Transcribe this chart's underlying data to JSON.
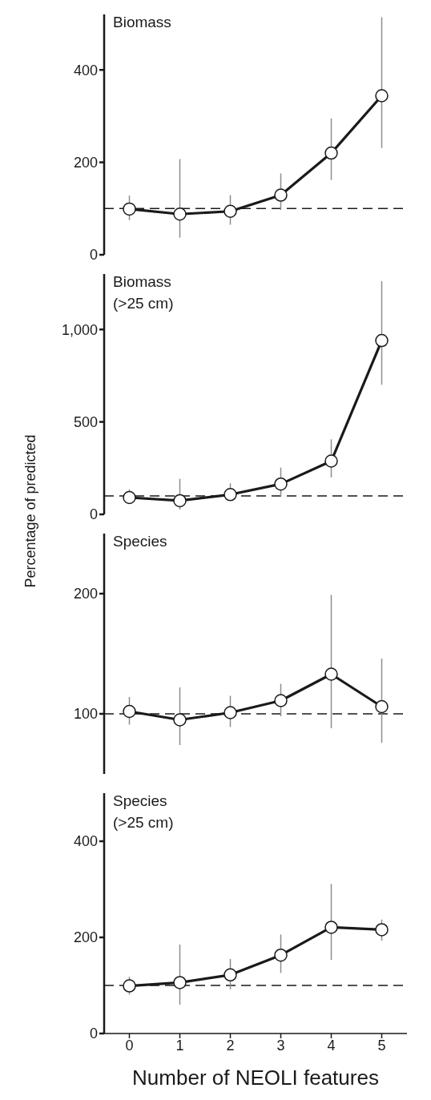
{
  "chart_data": [
    {
      "type": "line",
      "title": "Biomass",
      "x": [
        0,
        1,
        2,
        3,
        4,
        5
      ],
      "xlim": [
        -0.5,
        5.5
      ],
      "xticks": [
        0,
        1,
        2,
        3,
        4,
        5
      ],
      "ylim": [
        0,
        520
      ],
      "yticks": [
        0,
        200,
        400
      ],
      "tick_labels": "y",
      "marker": "circle",
      "line_style": "solid",
      "series": [
        {
          "color": "#1a1a1a",
          "values": [
            99,
            88,
            94,
            129,
            220,
            344
          ],
          "errors": [
            [
              75,
              128
            ],
            [
              37,
              207
            ],
            [
              65,
              129
            ],
            [
              97,
              176
            ],
            [
              162,
              295
            ],
            [
              231,
              514
            ]
          ]
        }
      ],
      "ref_lines": [
        {
          "axis": "y",
          "value": 100,
          "line_style": "dashed",
          "color": "#1a1a1a"
        }
      ]
    },
    {
      "type": "line",
      "title": "Biomass (>25 cm)",
      "ylabel": "Percentage of predicted",
      "x": [
        0,
        1,
        2,
        3,
        4,
        5
      ],
      "xlim": [
        -0.5,
        5.5
      ],
      "xticks": [
        0,
        1,
        2,
        3,
        4,
        5
      ],
      "ylim": [
        0,
        1300
      ],
      "yticks": [
        0,
        500,
        {
          "value": 1000,
          "label": "1,000"
        }
      ],
      "tick_labels": "y",
      "marker": "circle",
      "line_style": "solid",
      "series": [
        {
          "color": "#1a1a1a",
          "values": [
            91,
            74,
            107,
            164,
            288,
            940
          ],
          "errors": [
            [
              73,
              135
            ],
            [
              26,
              192
            ],
            [
              85,
              168
            ],
            [
              97,
              253
            ],
            [
              200,
              406
            ],
            [
              701,
              1261
            ]
          ]
        }
      ],
      "ref_lines": [
        {
          "axis": "y",
          "value": 100,
          "line_style": "dashed",
          "color": "#1a1a1a"
        }
      ]
    },
    {
      "type": "line",
      "title": "Species",
      "x": [
        0,
        1,
        2,
        3,
        4,
        5
      ],
      "xlim": [
        -0.5,
        5.5
      ],
      "xticks": [
        0,
        1,
        2,
        3,
        4,
        5
      ],
      "ylim": [
        50,
        250
      ],
      "yticks": [
        100,
        200
      ],
      "tick_labels": "y",
      "marker": "circle",
      "line_style": "solid",
      "series": [
        {
          "color": "#1a1a1a",
          "values": [
            102,
            95,
            101,
            111,
            133,
            106
          ],
          "errors": [
            [
              91,
              114
            ],
            [
              74,
              122
            ],
            [
              89,
              115
            ],
            [
              98,
              125
            ],
            [
              88,
              199
            ],
            [
              76,
              146
            ]
          ]
        }
      ],
      "ref_lines": [
        {
          "axis": "y",
          "value": 100,
          "line_style": "dashed",
          "color": "#1a1a1a"
        }
      ]
    },
    {
      "type": "line",
      "title": "Species (>25 cm)",
      "xlabel": "Number of NEOLI features",
      "x": [
        0,
        1,
        2,
        3,
        4,
        5
      ],
      "xlim": [
        -0.5,
        5.5
      ],
      "xticks": [
        0,
        1,
        2,
        3,
        4,
        5
      ],
      "ylim": [
        0,
        500
      ],
      "yticks": [
        0,
        200,
        400
      ],
      "marker": "circle",
      "line_style": "solid",
      "series": [
        {
          "color": "#1a1a1a",
          "values": [
            99,
            106,
            122,
            163,
            221,
            216
          ],
          "errors": [
            [
              81,
              118
            ],
            [
              60,
              185
            ],
            [
              92,
              155
            ],
            [
              126,
              206
            ],
            [
              153,
              311
            ],
            [
              193,
              237
            ]
          ]
        }
      ],
      "ref_lines": [
        {
          "axis": "y",
          "value": 100,
          "line_style": "dashed",
          "color": "#1a1a1a"
        }
      ]
    }
  ]
}
